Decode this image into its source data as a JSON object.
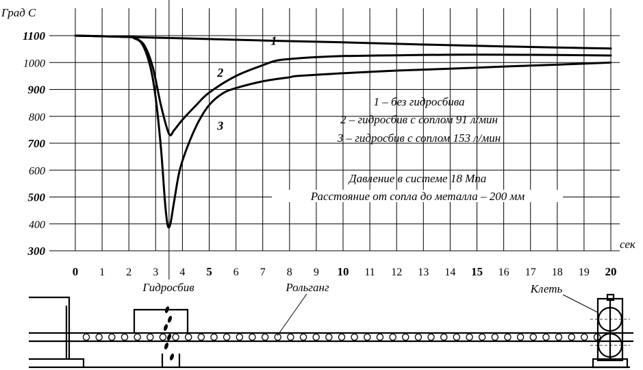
{
  "chart_data": {
    "type": "line",
    "ylabel": "Град С",
    "xlabel": "сек",
    "xlim": [
      0,
      20
    ],
    "ylim": [
      300,
      1100
    ],
    "grid": true,
    "x_ticks": [
      {
        "v": 0,
        "label": "0",
        "bold": true
      },
      {
        "v": 1,
        "label": "1",
        "bold": false
      },
      {
        "v": 2,
        "label": "2",
        "bold": false
      },
      {
        "v": 3,
        "label": "3",
        "bold": false
      },
      {
        "v": 4,
        "label": "4",
        "bold": false
      },
      {
        "v": 5,
        "label": "5",
        "bold": true
      },
      {
        "v": 6,
        "label": "6",
        "bold": false
      },
      {
        "v": 7,
        "label": "7",
        "bold": false
      },
      {
        "v": 8,
        "label": "8",
        "bold": false
      },
      {
        "v": 9,
        "label": "9",
        "bold": false
      },
      {
        "v": 10,
        "label": "10",
        "bold": true
      },
      {
        "v": 11,
        "label": "11",
        "bold": false
      },
      {
        "v": 12,
        "label": "12",
        "bold": false
      },
      {
        "v": 13,
        "label": "13",
        "bold": false
      },
      {
        "v": 14,
        "label": "14",
        "bold": false
      },
      {
        "v": 15,
        "label": "15",
        "bold": true
      },
      {
        "v": 16,
        "label": "16",
        "bold": false
      },
      {
        "v": 17,
        "label": "17",
        "bold": false
      },
      {
        "v": 18,
        "label": "18",
        "bold": false
      },
      {
        "v": 19,
        "label": "19",
        "bold": false
      },
      {
        "v": 20,
        "label": "20",
        "bold": true
      }
    ],
    "y_ticks": [
      {
        "v": 300,
        "label": "300",
        "bold": true
      },
      {
        "v": 400,
        "label": "400",
        "bold": false
      },
      {
        "v": 500,
        "label": "500",
        "bold": true
      },
      {
        "v": 600,
        "label": "600",
        "bold": false
      },
      {
        "v": 700,
        "label": "700",
        "bold": true
      },
      {
        "v": 800,
        "label": "800",
        "bold": false
      },
      {
        "v": 900,
        "label": "900",
        "bold": true
      },
      {
        "v": 1000,
        "label": "1000",
        "bold": false
      },
      {
        "v": 1100,
        "label": "1100",
        "bold": true
      }
    ],
    "marker_x": 3.5,
    "series": [
      {
        "name": "1",
        "label_at": [
          7.3,
          1065
        ],
        "points": [
          [
            0,
            1100
          ],
          [
            2,
            1095
          ],
          [
            4,
            1090
          ],
          [
            7,
            1082
          ],
          [
            10,
            1075
          ],
          [
            13,
            1067
          ],
          [
            16,
            1060
          ],
          [
            20,
            1052
          ]
        ]
      },
      {
        "name": "2",
        "label_at": [
          5.3,
          947
        ],
        "points": [
          [
            0,
            1100
          ],
          [
            2,
            1095
          ],
          [
            2.3,
            1088
          ],
          [
            2.6,
            1060
          ],
          [
            2.9,
            980
          ],
          [
            3.2,
            840
          ],
          [
            3.5,
            735
          ],
          [
            3.7,
            750
          ],
          [
            4,
            787
          ],
          [
            4.5,
            840
          ],
          [
            5,
            888
          ],
          [
            6,
            950
          ],
          [
            7,
            990
          ],
          [
            7.5,
            1007
          ],
          [
            8,
            1013
          ],
          [
            9,
            1020
          ],
          [
            10,
            1024
          ],
          [
            12,
            1027
          ],
          [
            14,
            1029
          ],
          [
            16,
            1029
          ],
          [
            18,
            1028
          ],
          [
            20,
            1026
          ]
        ]
      },
      {
        "name": "3",
        "label_at": [
          5.3,
          750
        ],
        "points": [
          [
            0,
            1100
          ],
          [
            2,
            1095
          ],
          [
            2.2,
            1090
          ],
          [
            2.5,
            1068
          ],
          [
            2.8,
            985
          ],
          [
            3.0,
            870
          ],
          [
            3.2,
            680
          ],
          [
            3.35,
            480
          ],
          [
            3.45,
            395
          ],
          [
            3.55,
            400
          ],
          [
            3.7,
            490
          ],
          [
            3.9,
            600
          ],
          [
            4.2,
            690
          ],
          [
            4.6,
            780
          ],
          [
            5,
            842
          ],
          [
            5.5,
            885
          ],
          [
            6,
            905
          ],
          [
            7,
            930
          ],
          [
            8,
            945
          ],
          [
            8.3,
            950
          ],
          [
            10,
            960
          ],
          [
            12,
            970
          ],
          [
            14,
            977
          ],
          [
            16,
            985
          ],
          [
            18,
            992
          ],
          [
            20,
            1000
          ]
        ]
      }
    ],
    "annotations": [
      "1 – без гидросбива",
      "2 – гидросбив с соплом 91 л/мин",
      "3 – гидросбив с соплом 153 л/мин",
      "Давление в системе 18 Мпа",
      "Расстояние от сопла до металла – 200 мм"
    ]
  },
  "scheme": {
    "label_descaler": "Гидросбив",
    "label_rollgang": "Рольганг",
    "label_stand": "Клеть"
  }
}
